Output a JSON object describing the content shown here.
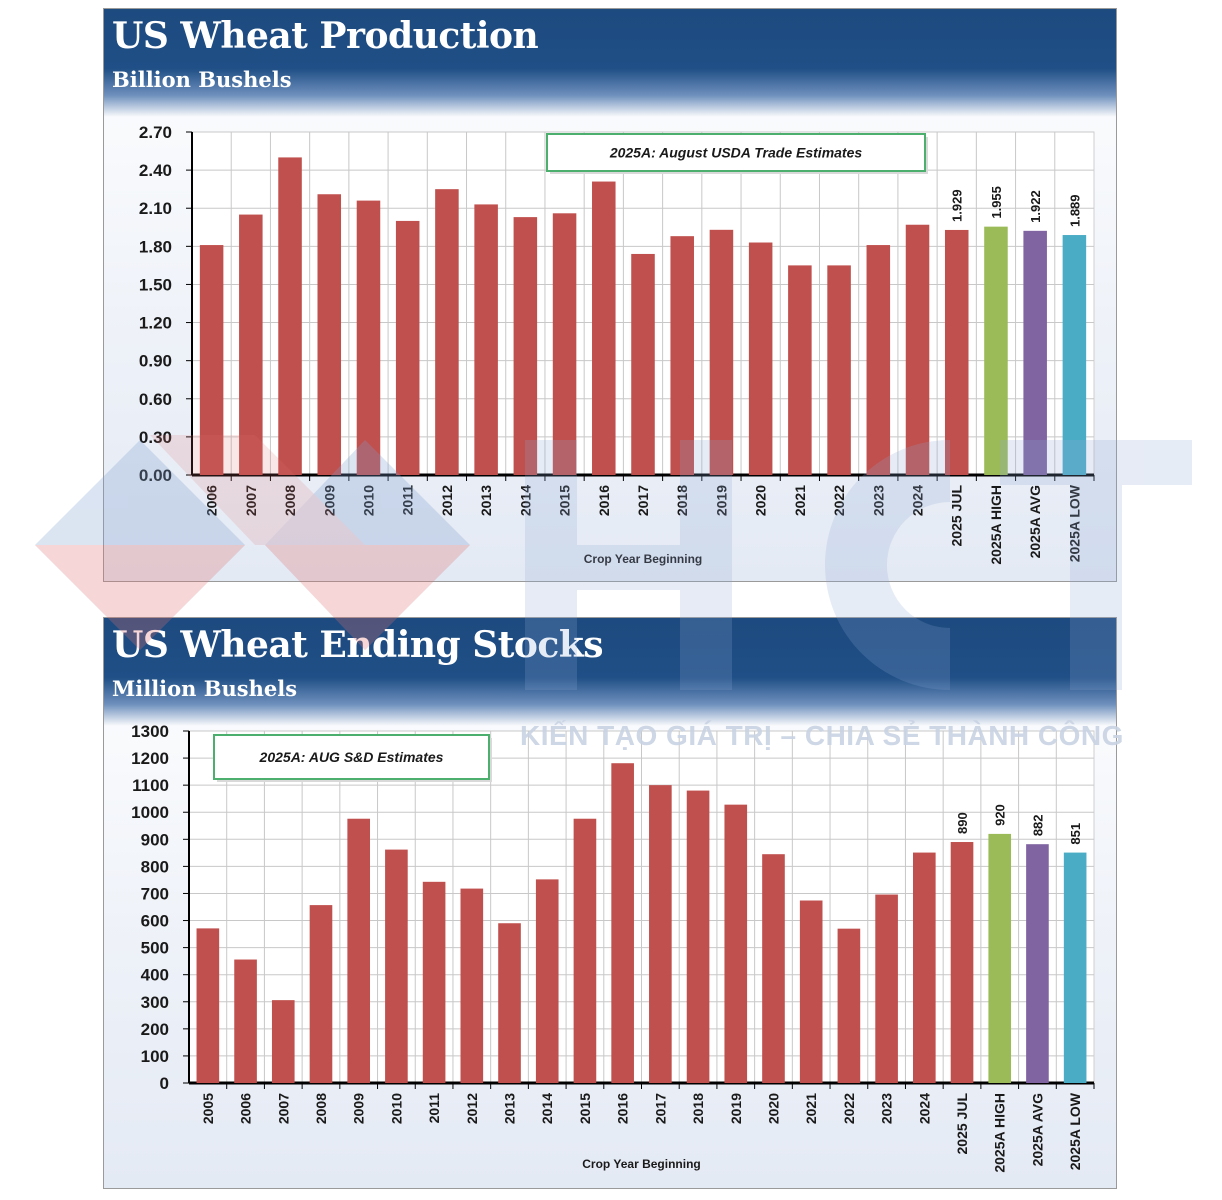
{
  "chart_data": [
    {
      "type": "bar",
      "title": "US Wheat Production",
      "subtitle": "Billion Bushels",
      "xlabel": "Crop Year Beginning",
      "annotation": "2025A: August USDA Trade Estimates",
      "ylim": [
        0,
        2.7
      ],
      "yticks": [
        "0.00",
        "0.30",
        "0.60",
        "0.90",
        "1.20",
        "1.50",
        "1.80",
        "2.10",
        "2.40",
        "2.70"
      ],
      "categories": [
        "2006",
        "2007",
        "2008",
        "2009",
        "2010",
        "2011",
        "2012",
        "2013",
        "2014",
        "2015",
        "2016",
        "2017",
        "2018",
        "2019",
        "2020",
        "2021",
        "2022",
        "2023",
        "2024",
        "2025 JUL",
        "2025A HIGH",
        "2025A AVG",
        "2025A LOW"
      ],
      "values": [
        1.81,
        2.05,
        2.5,
        2.21,
        2.16,
        2.0,
        2.25,
        2.13,
        2.03,
        2.06,
        2.31,
        1.74,
        1.88,
        1.93,
        1.83,
        1.65,
        1.65,
        1.81,
        1.97,
        1.929,
        1.955,
        1.922,
        1.889
      ],
      "data_labels": [
        "",
        "",
        "",
        "",
        "",
        "",
        "",
        "",
        "",
        "",
        "",
        "",
        "",
        "",
        "",
        "",
        "",
        "",
        "",
        "1.929",
        "1.955",
        "1.922",
        "1.889"
      ],
      "colors": [
        "#c0504d",
        "#c0504d",
        "#c0504d",
        "#c0504d",
        "#c0504d",
        "#c0504d",
        "#c0504d",
        "#c0504d",
        "#c0504d",
        "#c0504d",
        "#c0504d",
        "#c0504d",
        "#c0504d",
        "#c0504d",
        "#c0504d",
        "#c0504d",
        "#c0504d",
        "#c0504d",
        "#c0504d",
        "#c0504d",
        "#9bbb59",
        "#8064a2",
        "#4bacc6"
      ]
    },
    {
      "type": "bar",
      "title": "US Wheat Ending Stocks",
      "subtitle": "Million Bushels",
      "xlabel": "Crop Year Beginning",
      "annotation": "2025A: AUG S&D Estimates",
      "ylim": [
        0,
        1300
      ],
      "yticks": [
        "0",
        "100",
        "200",
        "300",
        "400",
        "500",
        "600",
        "700",
        "800",
        "900",
        "1000",
        "1100",
        "1200",
        "1300"
      ],
      "categories": [
        "2005",
        "2006",
        "2007",
        "2008",
        "2009",
        "2010",
        "2011",
        "2012",
        "2013",
        "2014",
        "2015",
        "2016",
        "2017",
        "2018",
        "2019",
        "2020",
        "2021",
        "2022",
        "2023",
        "2024",
        "2025 JUL",
        "2025A HIGH",
        "2025A AVG",
        "2025A LOW"
      ],
      "values": [
        571,
        456,
        306,
        657,
        976,
        862,
        743,
        718,
        590,
        752,
        976,
        1181,
        1100,
        1080,
        1028,
        845,
        674,
        570,
        696,
        851,
        890,
        920,
        882,
        851
      ],
      "data_labels": [
        "",
        "",
        "",
        "",
        "",
        "",
        "",
        "",
        "",
        "",
        "",
        "",
        "",
        "",
        "",
        "",
        "",
        "",
        "",
        "",
        "890",
        "920",
        "882",
        "851"
      ],
      "colors": [
        "#c0504d",
        "#c0504d",
        "#c0504d",
        "#c0504d",
        "#c0504d",
        "#c0504d",
        "#c0504d",
        "#c0504d",
        "#c0504d",
        "#c0504d",
        "#c0504d",
        "#c0504d",
        "#c0504d",
        "#c0504d",
        "#c0504d",
        "#c0504d",
        "#c0504d",
        "#c0504d",
        "#c0504d",
        "#c0504d",
        "#c0504d",
        "#9bbb59",
        "#8064a2",
        "#4bacc6"
      ]
    }
  ],
  "watermark": {
    "logo_letters": "HCT",
    "tagline": "KIẾN TẠO GIÁ TRỊ – CHIA SẺ THÀNH CÔNG"
  }
}
